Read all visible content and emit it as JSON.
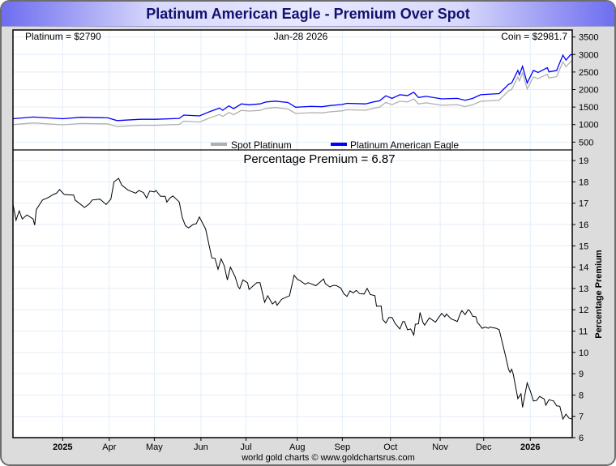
{
  "title": "Platinum American Eagle - Premium Over Spot",
  "header": {
    "spot_label": "Platinum = $2790",
    "date_label": "Jan-28  2026",
    "coin_label": "Coin = $2981.7"
  },
  "footer": "world gold charts © www.goldchartsrus.com",
  "colors": {
    "spot": "#b0b0b0",
    "coin": "#0000ff",
    "premium": "#000000",
    "grid": "#e3eef8",
    "title": "#12126e"
  },
  "chart_data": [
    {
      "type": "line",
      "title": "",
      "x_unit": "days",
      "xlim": [
        0,
        360
      ],
      "ylim": [
        300,
        3700
      ],
      "yticks": [
        500,
        1000,
        1500,
        2000,
        2500,
        3000,
        3500
      ],
      "legend": {
        "placement": "bottom-center",
        "entries": [
          "Spot Platinum",
          "Platinum American Eagle"
        ]
      },
      "series": [
        {
          "name": "Spot Platinum",
          "color_key": "spot",
          "x": [
            0,
            13,
            32,
            44,
            61,
            67,
            82,
            92,
            107,
            110,
            120,
            127,
            133,
            135,
            139,
            142,
            147,
            152,
            159,
            163,
            169,
            177,
            182,
            192,
            199,
            204,
            212,
            215,
            227,
            232,
            236,
            240,
            244,
            249,
            254,
            258,
            261,
            266,
            276,
            286,
            291,
            296,
            301,
            313,
            319,
            321,
            325,
            326,
            328,
            331,
            335,
            338,
            344,
            345,
            350,
            351,
            354,
            356,
            359,
            360
          ],
          "y": [
            999,
            1046,
            994,
            1030,
            1019,
            944,
            980,
            980,
            1005,
            1097,
            1073,
            1194,
            1290,
            1232,
            1348,
            1281,
            1406,
            1386,
            1405,
            1462,
            1487,
            1446,
            1317,
            1341,
            1333,
            1363,
            1394,
            1425,
            1410,
            1466,
            1496,
            1635,
            1567,
            1666,
            1646,
            1735,
            1589,
            1620,
            1551,
            1569,
            1515,
            1566,
            1665,
            1697,
            1966,
            2003,
            2361,
            2247,
            2478,
            2016,
            2361,
            2309,
            2437,
            2328,
            2367,
            2478,
            2790,
            2651,
            2805,
            2790
          ]
        },
        {
          "name": "Platinum American Eagle",
          "color_key": "coin",
          "x": [
            0,
            13,
            32,
            44,
            61,
            67,
            82,
            92,
            107,
            110,
            120,
            127,
            133,
            135,
            139,
            142,
            147,
            152,
            159,
            163,
            169,
            177,
            182,
            192,
            199,
            204,
            212,
            215,
            227,
            232,
            236,
            240,
            244,
            249,
            254,
            258,
            261,
            266,
            276,
            286,
            291,
            296,
            301,
            313,
            319,
            321,
            325,
            326,
            328,
            331,
            335,
            338,
            344,
            345,
            350,
            351,
            354,
            356,
            359,
            360
          ],
          "y": [
            1168,
            1216,
            1168,
            1208,
            1192,
            1113,
            1152,
            1152,
            1176,
            1272,
            1248,
            1375,
            1471,
            1407,
            1534,
            1455,
            1590,
            1566,
            1590,
            1646,
            1670,
            1630,
            1495,
            1518,
            1510,
            1542,
            1574,
            1606,
            1590,
            1646,
            1678,
            1821,
            1749,
            1853,
            1829,
            1924,
            1773,
            1805,
            1734,
            1749,
            1694,
            1749,
            1853,
            1885,
            2147,
            2187,
            2545,
            2425,
            2664,
            2187,
            2545,
            2489,
            2625,
            2505,
            2545,
            2664,
            2983,
            2839,
            2999,
            2982
          ]
        }
      ]
    },
    {
      "type": "line",
      "title": "Percentage Premium = 6.87",
      "ylabel": "Percentage Premium",
      "xlabel": "",
      "x_unit": "days",
      "xlim": [
        0,
        360
      ],
      "ylim": [
        6,
        19.5
      ],
      "yticks": [
        6,
        7,
        8,
        9,
        10,
        11,
        12,
        13,
        14,
        15,
        16,
        17,
        18,
        19
      ],
      "xticks": {
        "labels": [
          "2025",
          "Apr",
          "May",
          "Jun",
          "Jul",
          "Aug",
          "Sep",
          "Oct",
          "Nov",
          "Dec",
          "2026"
        ],
        "x": [
          32,
          62,
          91,
          121,
          150,
          183,
          212,
          243,
          275,
          303,
          333
        ]
      },
      "grid": true,
      "series": [
        {
          "name": "Percentage Premium",
          "color_key": "premium",
          "x": [
            0,
            2,
            4,
            6,
            9,
            13,
            14,
            15,
            19,
            23,
            26,
            28,
            30,
            33,
            39,
            40,
            46,
            49,
            51,
            56,
            60,
            63,
            65,
            68,
            70,
            74,
            79,
            81,
            84,
            86,
            88,
            91,
            92,
            95,
            98,
            99,
            101,
            103,
            107,
            109,
            111,
            113,
            116,
            118,
            120,
            124,
            126,
            128,
            130,
            132,
            134,
            136,
            138,
            140,
            143,
            145,
            146,
            148,
            151,
            152,
            154,
            157,
            159,
            162,
            164,
            167,
            169,
            170,
            173,
            178,
            181,
            183,
            185,
            188,
            190,
            195,
            200,
            201,
            204,
            206,
            208,
            211,
            213,
            215,
            217,
            219,
            221,
            223,
            226,
            228,
            230,
            233,
            234,
            237,
            238,
            240,
            242,
            244,
            246,
            249,
            251,
            252,
            254,
            256,
            258,
            259,
            261,
            262,
            264,
            265,
            268,
            272,
            274,
            276,
            278,
            279,
            282,
            286,
            288,
            289,
            291,
            293,
            294,
            296,
            298,
            299,
            300,
            302,
            304,
            306,
            307,
            311,
            313,
            315,
            317,
            319,
            320,
            321,
            322,
            325,
            327,
            328,
            331,
            333,
            335,
            337,
            339,
            342,
            343,
            345,
            348,
            350,
            352,
            354,
            356,
            358,
            360
          ],
          "y": [
            16.96,
            16.2,
            16.64,
            16.26,
            16.45,
            16.26,
            15.97,
            16.7,
            17.15,
            17.28,
            17.41,
            17.47,
            17.64,
            17.41,
            17.38,
            17.15,
            16.8,
            16.96,
            17.15,
            17.19,
            16.94,
            17.19,
            18.0,
            18.17,
            17.85,
            17.62,
            17.47,
            17.6,
            17.5,
            17.24,
            17.57,
            17.53,
            17.6,
            17.32,
            17.32,
            17.05,
            17.24,
            17.34,
            17.06,
            16.32,
            15.94,
            15.84,
            16.0,
            16.04,
            16.35,
            15.79,
            15.11,
            14.44,
            14.41,
            13.9,
            14.39,
            14.06,
            13.4,
            14.0,
            13.55,
            13.08,
            12.99,
            13.4,
            13.27,
            12.95,
            13.08,
            13.27,
            13.27,
            12.35,
            12.66,
            12.27,
            12.4,
            12.21,
            12.5,
            12.66,
            13.62,
            13.43,
            13.36,
            13.2,
            13.27,
            13.13,
            13.45,
            13.23,
            13.07,
            13.14,
            13.14,
            13.02,
            12.75,
            12.63,
            12.89,
            12.79,
            12.91,
            12.76,
            12.74,
            13.0,
            12.72,
            12.66,
            12.17,
            12.17,
            11.54,
            11.38,
            11.64,
            11.64,
            11.36,
            11.1,
            11.45,
            11.45,
            11.06,
            11.1,
            10.81,
            11.32,
            11.34,
            11.87,
            11.39,
            11.28,
            11.62,
            11.42,
            11.64,
            11.83,
            11.67,
            11.8,
            11.58,
            11.45,
            11.83,
            11.96,
            11.77,
            12.0,
            11.96,
            11.69,
            11.67,
            11.38,
            11.32,
            11.13,
            11.19,
            11.13,
            11.19,
            11.13,
            11.06,
            10.45,
            9.85,
            9.21,
            9.06,
            9.21,
            8.98,
            7.83,
            8.06,
            7.42,
            8.57,
            8.19,
            7.72,
            7.74,
            7.93,
            7.81,
            7.52,
            7.78,
            7.72,
            7.49,
            7.47,
            6.87,
            7.1,
            6.91,
            6.87
          ]
        }
      ]
    }
  ]
}
